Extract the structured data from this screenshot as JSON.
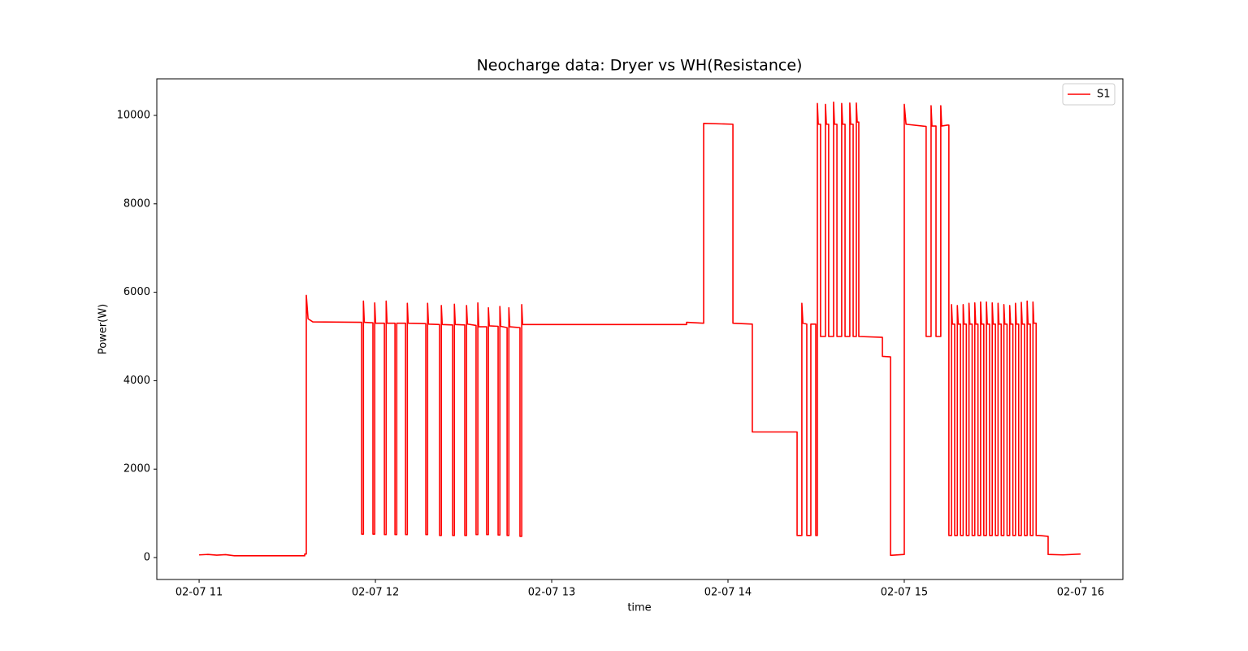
{
  "chart_data": {
    "type": "line",
    "title": "Neocharge data: Dryer vs WH(Resistance)",
    "x_label": "time",
    "y_label": "Power(W)",
    "xlim": [
      10.76,
      16.24
    ],
    "ylim": [
      -496,
      10827
    ],
    "xticks": [
      {
        "value": 11,
        "label": "02-07 11"
      },
      {
        "value": 12,
        "label": "02-07 12"
      },
      {
        "value": 13,
        "label": "02-07 13"
      },
      {
        "value": 14,
        "label": "02-07 14"
      },
      {
        "value": 15,
        "label": "02-07 15"
      },
      {
        "value": 16,
        "label": "02-07 16"
      }
    ],
    "yticks": [
      0,
      2000,
      4000,
      6000,
      8000,
      10000
    ],
    "grid": false,
    "legend": "upper right",
    "x": [
      11.0,
      11.05,
      11.1,
      11.15,
      11.2,
      11.4,
      11.599,
      11.599,
      11.608,
      11.608,
      11.618,
      11.645,
      11.922,
      11.922,
      11.932,
      11.932,
      11.937,
      11.986,
      11.986,
      11.996,
      11.996,
      12.001,
      12.051,
      12.051,
      12.061,
      12.061,
      12.066,
      12.111,
      12.111,
      12.121,
      12.121,
      12.126,
      12.171,
      12.171,
      12.181,
      12.181,
      12.186,
      12.286,
      12.286,
      12.296,
      12.296,
      12.301,
      12.364,
      12.364,
      12.374,
      12.374,
      12.379,
      12.438,
      12.438,
      12.448,
      12.448,
      12.453,
      12.507,
      12.507,
      12.517,
      12.517,
      12.522,
      12.571,
      12.571,
      12.581,
      12.581,
      12.586,
      12.631,
      12.631,
      12.641,
      12.641,
      12.646,
      12.696,
      12.696,
      12.706,
      12.706,
      12.711,
      12.747,
      12.747,
      12.757,
      12.757,
      12.762,
      12.82,
      12.82,
      12.83,
      12.83,
      12.835,
      12.843,
      13.765,
      13.765,
      13.862,
      13.862,
      14.028,
      14.028,
      14.138,
      14.138,
      14.392,
      14.392,
      14.419,
      14.419,
      14.425,
      14.447,
      14.447,
      14.47,
      14.47,
      14.498,
      14.498,
      14.507,
      14.507,
      14.512,
      14.525,
      14.525,
      14.553,
      14.553,
      14.558,
      14.571,
      14.571,
      14.599,
      14.599,
      14.604,
      14.618,
      14.618,
      14.645,
      14.645,
      14.65,
      14.664,
      14.664,
      14.691,
      14.691,
      14.696,
      14.71,
      14.71,
      14.728,
      14.728,
      14.733,
      14.742,
      14.742,
      14.876,
      14.876,
      14.922,
      14.922,
      15.0,
      15.0,
      15.01,
      15.124,
      15.124,
      15.152,
      15.152,
      15.157,
      15.18,
      15.18,
      15.207,
      15.207,
      15.212,
      15.244,
      15.253,
      15.253,
      15.268,
      15.268,
      15.273,
      15.286,
      15.286,
      15.301,
      15.301,
      15.306,
      15.319,
      15.319,
      15.334,
      15.334,
      15.339,
      15.352,
      15.352,
      15.367,
      15.367,
      15.372,
      15.385,
      15.385,
      15.4,
      15.4,
      15.405,
      15.418,
      15.418,
      15.433,
      15.433,
      15.438,
      15.451,
      15.451,
      15.466,
      15.466,
      15.471,
      15.484,
      15.484,
      15.499,
      15.499,
      15.504,
      15.517,
      15.517,
      15.532,
      15.532,
      15.537,
      15.55,
      15.55,
      15.565,
      15.565,
      15.57,
      15.583,
      15.583,
      15.598,
      15.598,
      15.603,
      15.616,
      15.616,
      15.631,
      15.631,
      15.636,
      15.649,
      15.649,
      15.664,
      15.664,
      15.669,
      15.682,
      15.682,
      15.697,
      15.697,
      15.702,
      15.715,
      15.715,
      15.73,
      15.73,
      15.735,
      15.748,
      15.748,
      15.763,
      15.816,
      15.816,
      15.9,
      16.0
    ],
    "series": [
      {
        "name": "S1",
        "color": "#ff0000",
        "values": [
          60,
          70,
          55,
          65,
          40,
          40,
          40,
          80,
          80,
          5930,
          5400,
          5330,
          5320,
          530,
          530,
          5800,
          5320,
          5310,
          530,
          530,
          5760,
          5300,
          5300,
          520,
          520,
          5800,
          5300,
          5300,
          520,
          520,
          5300,
          5300,
          5300,
          520,
          520,
          5750,
          5300,
          5290,
          520,
          520,
          5750,
          5280,
          5270,
          500,
          500,
          5700,
          5270,
          5260,
          500,
          500,
          5730,
          5270,
          5260,
          500,
          500,
          5700,
          5280,
          5250,
          520,
          520,
          5760,
          5220,
          5220,
          520,
          520,
          5650,
          5240,
          5230,
          510,
          510,
          5680,
          5230,
          5200,
          500,
          500,
          5650,
          5220,
          5200,
          480,
          480,
          5720,
          5270,
          5270,
          5270,
          5320,
          5300,
          9820,
          9800,
          5300,
          5280,
          2840,
          2840,
          500,
          500,
          5750,
          5300,
          5280,
          500,
          500,
          5280,
          5280,
          500,
          500,
          10270,
          9800,
          9800,
          5000,
          5000,
          10250,
          9800,
          9800,
          5000,
          5000,
          10300,
          9800,
          9800,
          5000,
          5000,
          10270,
          9800,
          9800,
          5000,
          5000,
          10280,
          9800,
          9800,
          5000,
          5000,
          10280,
          9850,
          9850,
          5000,
          4980,
          4550,
          4540,
          50,
          70,
          10250,
          9800,
          9750,
          5000,
          5000,
          10220,
          9760,
          9760,
          5000,
          5000,
          10220,
          9760,
          9780,
          9780,
          500,
          500,
          5720,
          5280,
          5280,
          500,
          500,
          5700,
          5280,
          5280,
          500,
          500,
          5720,
          5280,
          5280,
          500,
          500,
          5750,
          5280,
          5280,
          500,
          500,
          5760,
          5280,
          5280,
          500,
          500,
          5780,
          5280,
          5280,
          500,
          500,
          5780,
          5280,
          5280,
          500,
          500,
          5760,
          5280,
          5280,
          500,
          500,
          5750,
          5280,
          5280,
          500,
          500,
          5720,
          5280,
          5280,
          500,
          500,
          5700,
          5280,
          5280,
          500,
          500,
          5750,
          5280,
          5280,
          500,
          500,
          5770,
          5280,
          5280,
          500,
          500,
          5800,
          5280,
          5280,
          500,
          500,
          5780,
          5300,
          5300,
          500,
          500,
          480,
          70,
          60,
          80
        ]
      }
    ]
  }
}
